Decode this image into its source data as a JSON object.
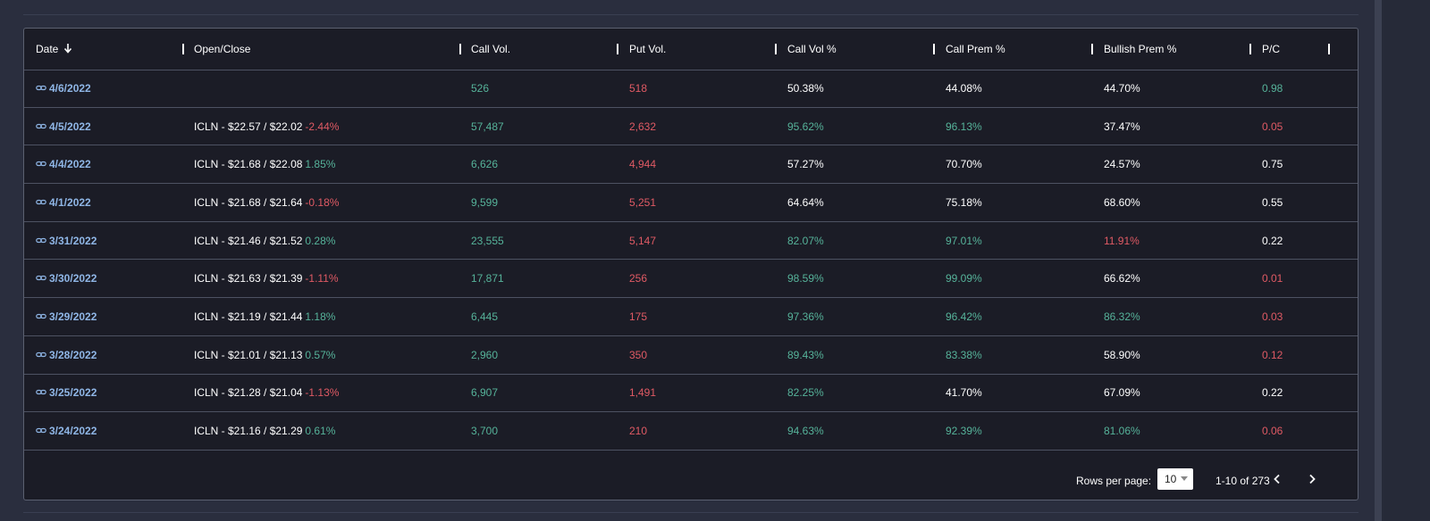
{
  "columns": [
    "Date",
    "Open/Close",
    "Call Vol.",
    "Put Vol.",
    "Call Vol %",
    "Call Prem %",
    "Bullish Prem %",
    "P/C"
  ],
  "colors": {
    "green": "#56b39a",
    "red": "#e05a64",
    "white": "#ffffff",
    "link": "#8fb6e6"
  },
  "rows": [
    {
      "date": "4/6/2022",
      "oc": "",
      "oc_change": "",
      "oc_color": "",
      "call_vol": "526",
      "put_vol": "518",
      "call_vol_pct": "50.38%",
      "call_vol_pct_color": "white",
      "call_prem_pct": "44.08%",
      "call_prem_pct_color": "white",
      "bullish_prem_pct": "44.70%",
      "bullish_prem_pct_color": "white",
      "pc": "0.98",
      "pc_color": "green"
    },
    {
      "date": "4/5/2022",
      "oc": "ICLN - $22.57 / $22.02",
      "oc_change": "-2.44%",
      "oc_color": "red",
      "call_vol": "57,487",
      "put_vol": "2,632",
      "call_vol_pct": "95.62%",
      "call_vol_pct_color": "green",
      "call_prem_pct": "96.13%",
      "call_prem_pct_color": "green",
      "bullish_prem_pct": "37.47%",
      "bullish_prem_pct_color": "white",
      "pc": "0.05",
      "pc_color": "red"
    },
    {
      "date": "4/4/2022",
      "oc": "ICLN - $21.68 / $22.08",
      "oc_change": "1.85%",
      "oc_color": "green",
      "call_vol": "6,626",
      "put_vol": "4,944",
      "call_vol_pct": "57.27%",
      "call_vol_pct_color": "white",
      "call_prem_pct": "70.70%",
      "call_prem_pct_color": "white",
      "bullish_prem_pct": "24.57%",
      "bullish_prem_pct_color": "white",
      "pc": "0.75",
      "pc_color": "white"
    },
    {
      "date": "4/1/2022",
      "oc": "ICLN - $21.68 / $21.64",
      "oc_change": "-0.18%",
      "oc_color": "red",
      "call_vol": "9,599",
      "put_vol": "5,251",
      "call_vol_pct": "64.64%",
      "call_vol_pct_color": "white",
      "call_prem_pct": "75.18%",
      "call_prem_pct_color": "white",
      "bullish_prem_pct": "68.60%",
      "bullish_prem_pct_color": "white",
      "pc": "0.55",
      "pc_color": "white"
    },
    {
      "date": "3/31/2022",
      "oc": "ICLN - $21.46 / $21.52",
      "oc_change": "0.28%",
      "oc_color": "green",
      "call_vol": "23,555",
      "put_vol": "5,147",
      "call_vol_pct": "82.07%",
      "call_vol_pct_color": "green",
      "call_prem_pct": "97.01%",
      "call_prem_pct_color": "green",
      "bullish_prem_pct": "11.91%",
      "bullish_prem_pct_color": "red",
      "pc": "0.22",
      "pc_color": "white"
    },
    {
      "date": "3/30/2022",
      "oc": "ICLN - $21.63 / $21.39",
      "oc_change": "-1.11%",
      "oc_color": "red",
      "call_vol": "17,871",
      "put_vol": "256",
      "call_vol_pct": "98.59%",
      "call_vol_pct_color": "green",
      "call_prem_pct": "99.09%",
      "call_prem_pct_color": "green",
      "bullish_prem_pct": "66.62%",
      "bullish_prem_pct_color": "white",
      "pc": "0.01",
      "pc_color": "red"
    },
    {
      "date": "3/29/2022",
      "oc": "ICLN - $21.19 / $21.44",
      "oc_change": "1.18%",
      "oc_color": "green",
      "call_vol": "6,445",
      "put_vol": "175",
      "call_vol_pct": "97.36%",
      "call_vol_pct_color": "green",
      "call_prem_pct": "96.42%",
      "call_prem_pct_color": "green",
      "bullish_prem_pct": "86.32%",
      "bullish_prem_pct_color": "green",
      "pc": "0.03",
      "pc_color": "red"
    },
    {
      "date": "3/28/2022",
      "oc": "ICLN - $21.01 / $21.13",
      "oc_change": "0.57%",
      "oc_color": "green",
      "call_vol": "2,960",
      "put_vol": "350",
      "call_vol_pct": "89.43%",
      "call_vol_pct_color": "green",
      "call_prem_pct": "83.38%",
      "call_prem_pct_color": "green",
      "bullish_prem_pct": "58.90%",
      "bullish_prem_pct_color": "white",
      "pc": "0.12",
      "pc_color": "red"
    },
    {
      "date": "3/25/2022",
      "oc": "ICLN - $21.28 / $21.04",
      "oc_change": "-1.13%",
      "oc_color": "red",
      "call_vol": "6,907",
      "put_vol": "1,491",
      "call_vol_pct": "82.25%",
      "call_vol_pct_color": "green",
      "call_prem_pct": "41.70%",
      "call_prem_pct_color": "white",
      "bullish_prem_pct": "67.09%",
      "bullish_prem_pct_color": "white",
      "pc": "0.22",
      "pc_color": "white"
    },
    {
      "date": "3/24/2022",
      "oc": "ICLN - $21.16 / $21.29",
      "oc_change": "0.61%",
      "oc_color": "green",
      "call_vol": "3,700",
      "put_vol": "210",
      "call_vol_pct": "94.63%",
      "call_vol_pct_color": "green",
      "call_prem_pct": "92.39%",
      "call_prem_pct_color": "green",
      "bullish_prem_pct": "81.06%",
      "bullish_prem_pct_color": "green",
      "pc": "0.06",
      "pc_color": "red"
    }
  ],
  "pagination": {
    "rows_per_page_label": "Rows per page:",
    "rows_per_page_value": "10",
    "range": "1-10 of 273"
  }
}
